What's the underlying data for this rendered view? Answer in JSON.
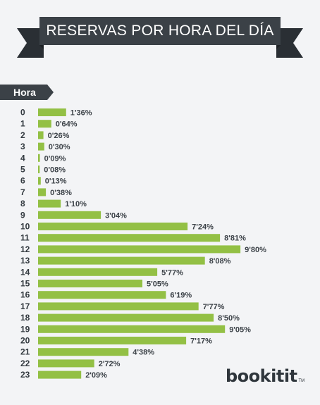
{
  "header": {
    "title": "RESERVAS POR HORA DEL DÍA"
  },
  "axis_tag": {
    "label": "Hora"
  },
  "brand": {
    "name": "bookitit",
    "tm": "TM"
  },
  "colors": {
    "bar": "#93c045",
    "ribbon": "#3b4147",
    "text": "#333a40",
    "background": "#f3f4f6"
  },
  "chart_data": {
    "type": "bar",
    "orientation": "horizontal",
    "title": "RESERVAS POR HORA DEL DÍA",
    "ylabel": "Hora",
    "categories": [
      "0",
      "1",
      "2",
      "3",
      "4",
      "5",
      "6",
      "7",
      "8",
      "9",
      "10",
      "11",
      "12",
      "13",
      "14",
      "15",
      "16",
      "17",
      "18",
      "19",
      "20",
      "21",
      "22",
      "23"
    ],
    "values": [
      1.36,
      0.64,
      0.26,
      0.3,
      0.09,
      0.08,
      0.13,
      0.38,
      1.1,
      3.04,
      7.24,
      8.81,
      9.8,
      8.08,
      5.77,
      5.05,
      6.19,
      7.77,
      8.5,
      9.05,
      7.17,
      4.38,
      2.72,
      2.09
    ],
    "value_labels": [
      "1'36%",
      "0'64%",
      "0'26%",
      "0'30%",
      "0'09%",
      "0'08%",
      "0'13%",
      "0'38%",
      "1'10%",
      "3'04%",
      "7'24%",
      "8'81%",
      "9'80%",
      "8'08%",
      "5'77%",
      "5'05%",
      "6'19%",
      "7'77%",
      "8'50%",
      "9'05%",
      "7'17%",
      "4'38%",
      "2'72%",
      "2'09%"
    ],
    "unit": "%",
    "grid": false,
    "legend": "none"
  }
}
